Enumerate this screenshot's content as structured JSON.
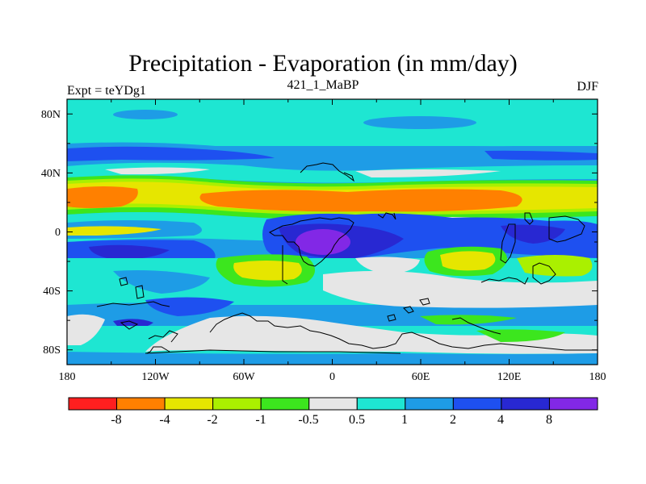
{
  "header": {
    "title": "Precipitation - Evaporation (in mm/day)",
    "left_label": "Expt = teYDg1",
    "center_label": "421_1_MaBP",
    "right_label": "DJF"
  },
  "colors": {
    "frame": "#000000",
    "coastline": "#000000"
  },
  "chart_data": {
    "type": "heatmap",
    "title": "Precipitation - Evaporation (in mm/day)",
    "x_ticks": [
      "180",
      "120W",
      "60W",
      "0",
      "60E",
      "120E",
      "180"
    ],
    "x_tick_values": [
      -180,
      -120,
      -60,
      0,
      60,
      120,
      180
    ],
    "y_ticks": [
      "80N",
      "40N",
      "0",
      "40S",
      "80S"
    ],
    "y_tick_values": [
      80,
      40,
      0,
      -40,
      -80
    ],
    "xlim": [
      -180,
      180
    ],
    "ylim": [
      -90,
      90
    ],
    "colorbar": {
      "colors": [
        "#ff1f1f",
        "#ff8000",
        "#e6e600",
        "#aaf000",
        "#3ce61e",
        "#e6e6e6",
        "#1ee6d2",
        "#1e9ce6",
        "#1e50f0",
        "#2828d2",
        "#8228e6"
      ],
      "labels": [
        "-8",
        "-4",
        "-2",
        "-1",
        "-0.5",
        "0.5",
        "1",
        "2",
        "4",
        "8"
      ]
    }
  }
}
